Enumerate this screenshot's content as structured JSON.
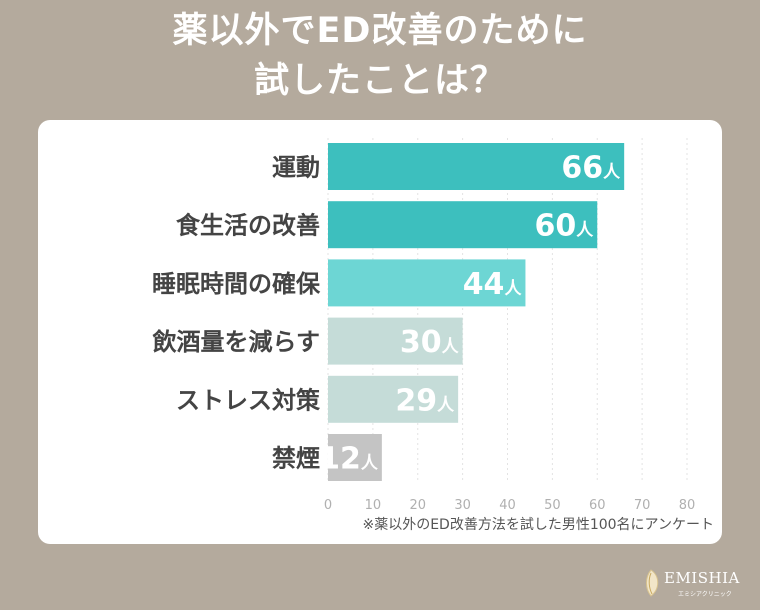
{
  "title": {
    "line1": "薬以外でED改善のために",
    "line2": "試したことは？"
  },
  "chart_data": {
    "type": "bar",
    "orientation": "horizontal",
    "categories": [
      "運動",
      "食生活の改善",
      "睡眠時間の確保",
      "飲酒量を減らす",
      "ストレス対策",
      "禁煙"
    ],
    "values": [
      66,
      60,
      44,
      30,
      29,
      12
    ],
    "value_unit": "人",
    "bar_colors": [
      "#3dbfbe",
      "#3dbfbe",
      "#6dd6d4",
      "#c5dcd8",
      "#c5dcd8",
      "#c4c4c4"
    ],
    "xlim": [
      0,
      80
    ],
    "xticks": [
      0,
      10,
      20,
      30,
      40,
      50,
      60,
      70,
      80
    ],
    "grid": "vertical-dashed"
  },
  "footnote": "※薬以外のED改善方法を試した男性100名にアンケート",
  "brand": {
    "name": "EMISHIA",
    "sub": "エミシアクリニック"
  },
  "colors": {
    "background": "#b4aa9d",
    "panel": "#ffffff",
    "axis_text": "#b0b0b0",
    "label_text": "#444444"
  }
}
